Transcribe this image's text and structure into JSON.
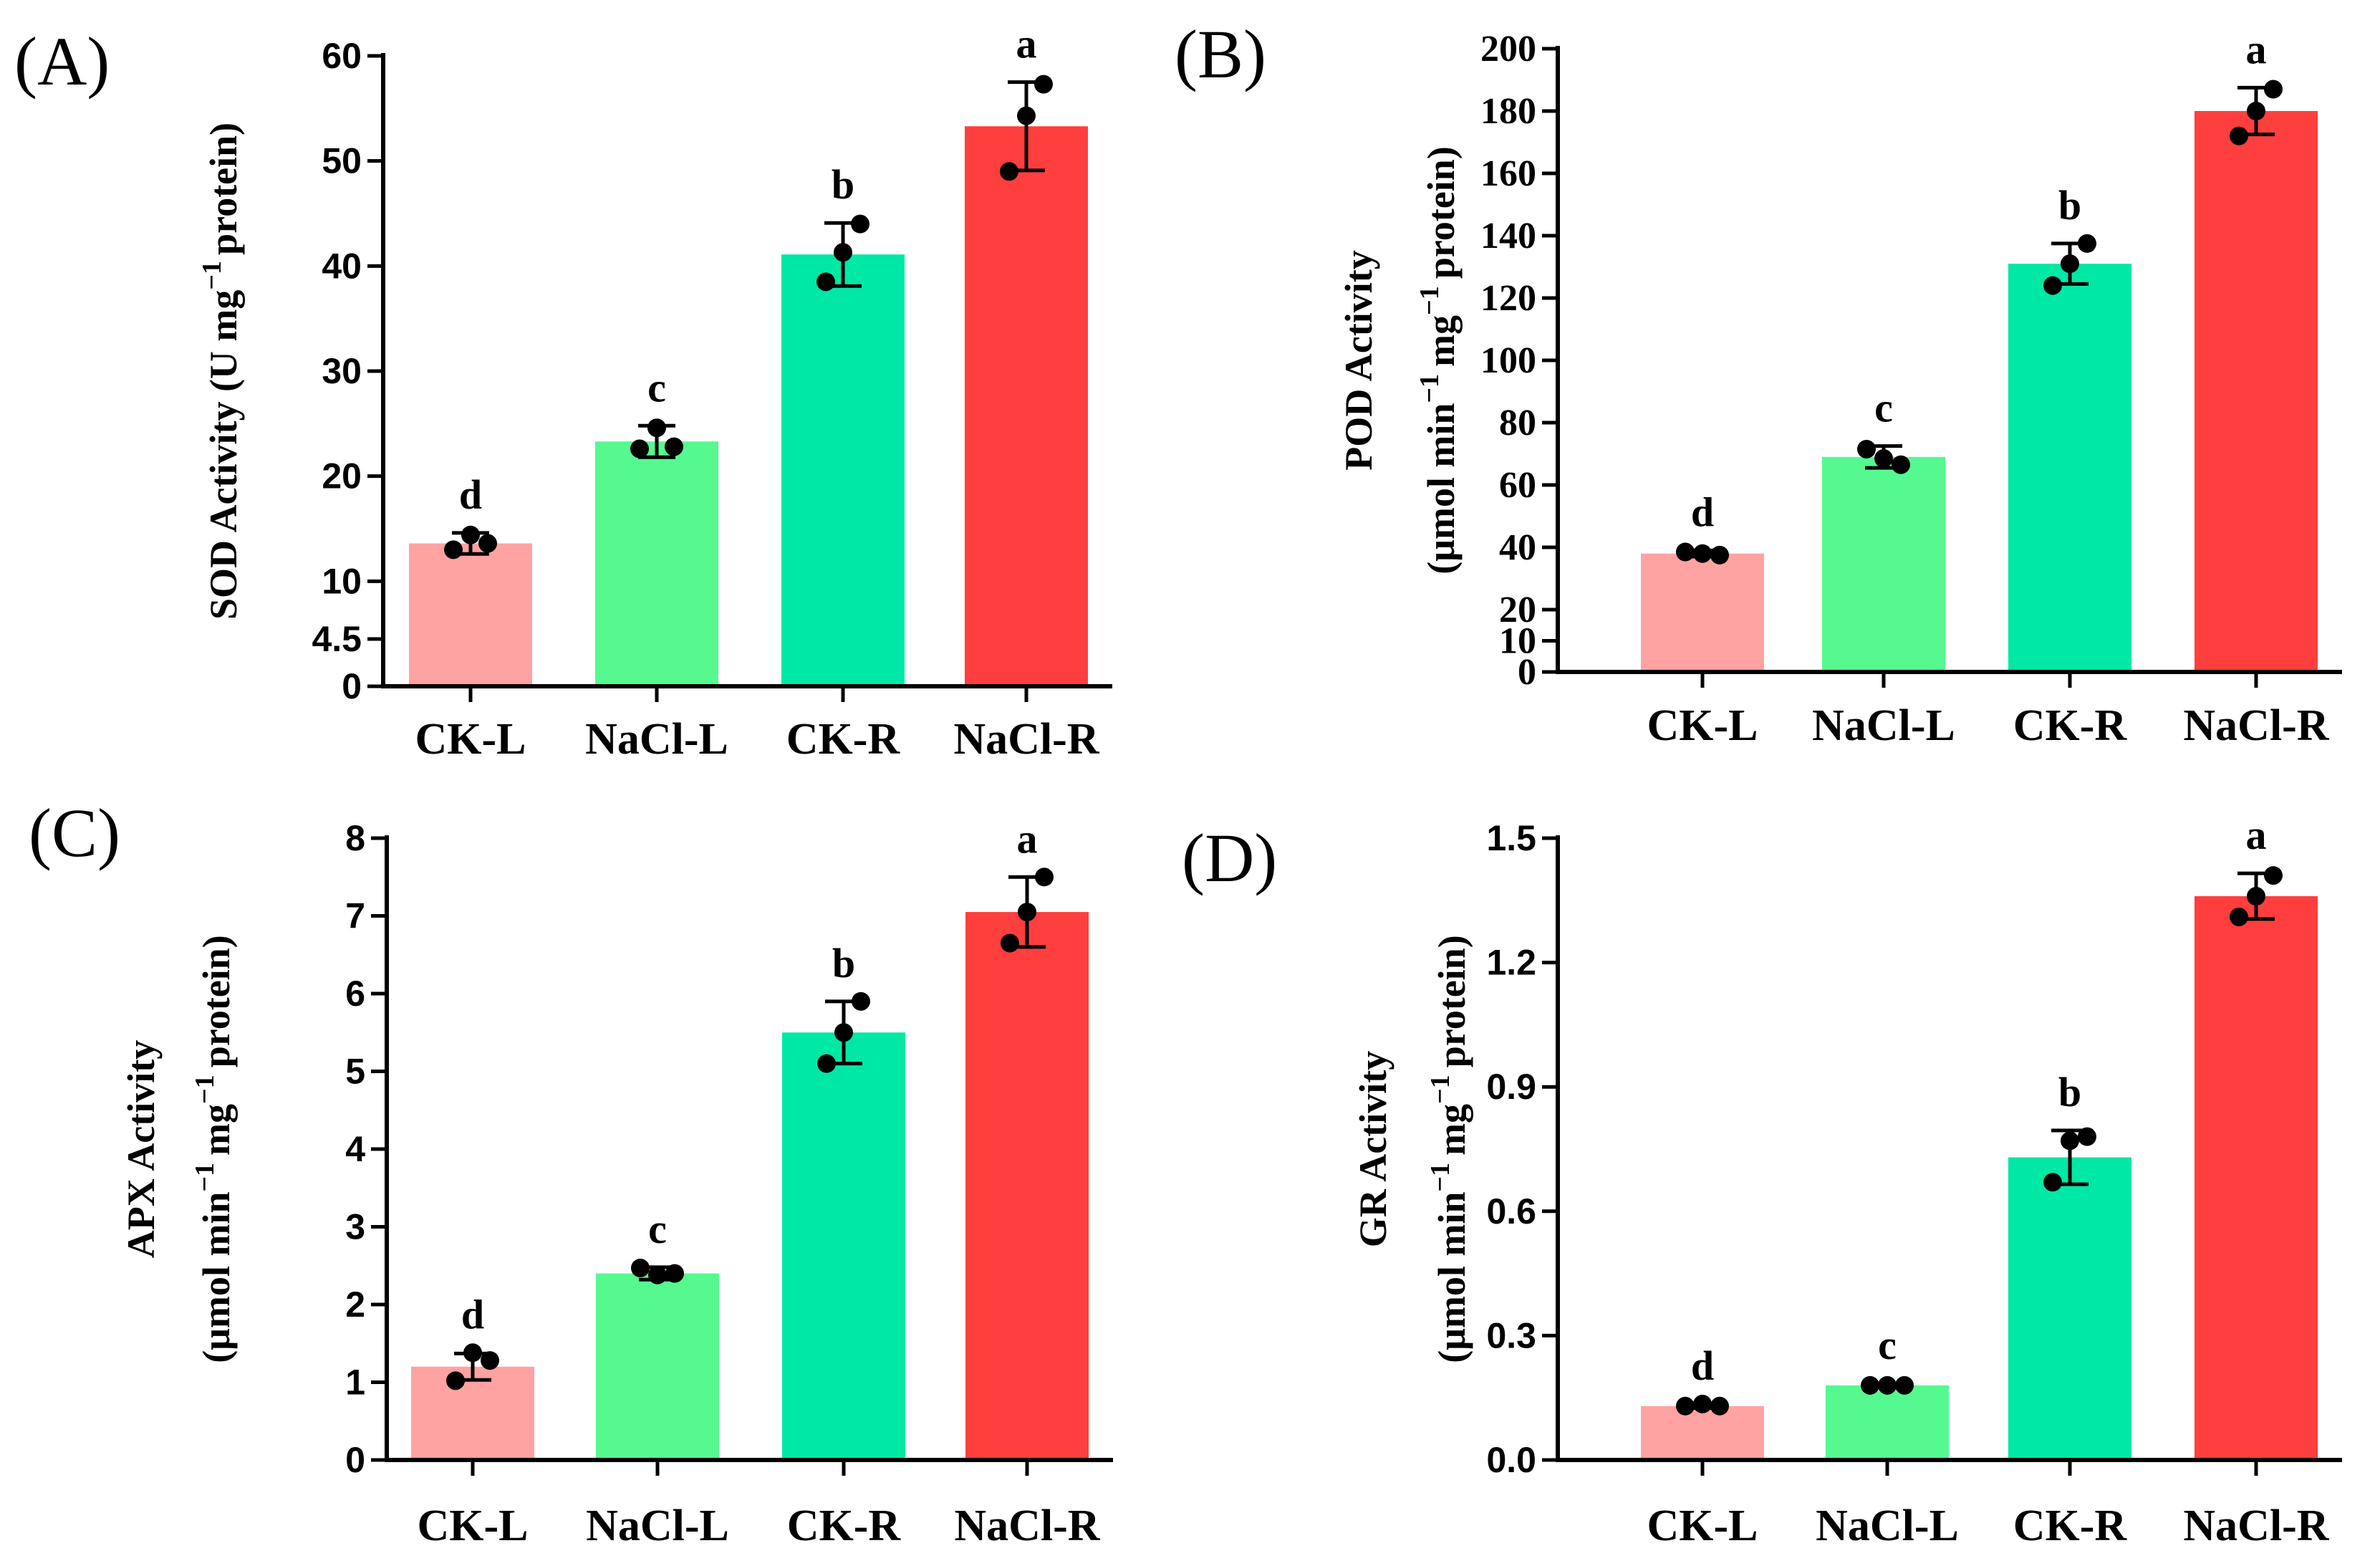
{
  "chart_data": [
    {
      "type": "bar",
      "panel_label": "(A)",
      "categories": [
        "CK-L",
        "NaCl-L",
        "CK-R",
        "NaCl-R"
      ],
      "colors": [
        "#ffa2a2",
        "#55f990",
        "#00e8a6",
        "#ff3e3e"
      ],
      "values": [
        13.6,
        23.3,
        41.1,
        53.3
      ],
      "errors": [
        1.0,
        1.5,
        3.0,
        4.2
      ],
      "points": [
        [
          13.0,
          14.4,
          13.6
        ],
        [
          22.6,
          24.6,
          22.8
        ],
        [
          38.5,
          41.3,
          44.0
        ],
        [
          49.0,
          54.3,
          57.3
        ]
      ],
      "sig_letters": [
        "d",
        "c",
        "b",
        "a"
      ],
      "ylabel": "SOD Activity (U mg",
      "ylabel_sup": "−1",
      "ylabel_end": "protein)",
      "yticks": [
        "0",
        "4.5",
        "10",
        "20",
        "30",
        "40",
        "50",
        "60"
      ],
      "ytick_values": [
        0,
        4.5,
        10,
        20,
        30,
        40,
        50,
        60
      ],
      "ylim": [
        0,
        60
      ],
      "tick_font": "sans"
    },
    {
      "type": "bar",
      "panel_label": "(B)",
      "categories": [
        "CK-L",
        "NaCl-L",
        "CK-R",
        "NaCl-R"
      ],
      "colors": [
        "#ffa2a2",
        "#55f990",
        "#00e8a6",
        "#ff3e3e"
      ],
      "values": [
        38.0,
        69.0,
        131.0,
        180.0
      ],
      "errors": [
        1.0,
        3.5,
        6.5,
        7.5
      ],
      "points": [
        [
          38.5,
          38.0,
          37.5
        ],
        [
          71.5,
          68.5,
          66.5
        ],
        [
          124.0,
          131.0,
          137.5
        ],
        [
          172.0,
          180.0,
          187.0
        ]
      ],
      "sig_letters": [
        "d",
        "c",
        "b",
        "a"
      ],
      "ylabel": "POD Activity",
      "ylabel2": "(μmol min",
      "ylabel2_sup1": "−1",
      "ylabel2_mid": "mg",
      "ylabel2_sup2": "−1",
      "ylabel2_end": "protein)",
      "yticks": [
        "0",
        "10",
        "20",
        "40",
        "60",
        "80",
        "100",
        "120",
        "140",
        "160",
        "180",
        "200"
      ],
      "ytick_values": [
        0,
        10,
        20,
        40,
        60,
        80,
        100,
        120,
        140,
        160,
        180,
        200
      ],
      "ylim": [
        0,
        200
      ],
      "tick_font": "serif"
    },
    {
      "type": "bar",
      "panel_label": "(C)",
      "categories": [
        "CK-L",
        "NaCl-L",
        "CK-R",
        "NaCl-R"
      ],
      "colors": [
        "#ffa2a2",
        "#55f990",
        "#00e8a6",
        "#ff3e3e"
      ],
      "values": [
        1.2,
        2.4,
        5.5,
        7.05
      ],
      "errors": [
        0.17,
        0.08,
        0.4,
        0.45
      ],
      "points": [
        [
          1.02,
          1.38,
          1.28
        ],
        [
          2.47,
          2.38,
          2.4
        ],
        [
          5.1,
          5.5,
          5.9
        ],
        [
          6.65,
          7.05,
          7.5
        ]
      ],
      "sig_letters": [
        "d",
        "c",
        "b",
        "a"
      ],
      "ylabel": "APX Activity",
      "ylabel2": "(μmol min",
      "ylabel2_sup1": "−1",
      "ylabel2_mid": "mg",
      "ylabel2_sup2": "−1",
      "ylabel2_end": "protein)",
      "yticks": [
        "0",
        "1",
        "2",
        "3",
        "4",
        "5",
        "6",
        "7",
        "8"
      ],
      "ytick_values": [
        0,
        1,
        2,
        3,
        4,
        5,
        6,
        7,
        8
      ],
      "ylim": [
        0,
        8
      ],
      "tick_font": "sans"
    },
    {
      "type": "bar",
      "panel_label": "(D)",
      "categories": [
        "CK-L",
        "NaCl-L",
        "CK-R",
        "NaCl-R"
      ],
      "colors": [
        "#ffa2a2",
        "#55f990",
        "#00e8a6",
        "#ff3e3e"
      ],
      "values": [
        0.13,
        0.18,
        0.73,
        1.36
      ],
      "errors": [
        0.005,
        0.005,
        0.065,
        0.055
      ],
      "points": [
        [
          0.13,
          0.135,
          0.13
        ],
        [
          0.18,
          0.18,
          0.18
        ],
        [
          0.67,
          0.77,
          0.78
        ],
        [
          1.31,
          1.36,
          1.41
        ]
      ],
      "sig_letters": [
        "d",
        "c",
        "b",
        "a"
      ],
      "ylabel": "GR Activity",
      "ylabel2": "(μmol min",
      "ylabel2_sup1": "−1",
      "ylabel2_mid": "mg",
      "ylabel2_sup2": "−1",
      "ylabel2_end": "protein)",
      "yticks": [
        "0.0",
        "0.3",
        "0.6",
        "0.9",
        "1.2",
        "1.5"
      ],
      "ytick_values": [
        0,
        0.3,
        0.6,
        0.9,
        1.2,
        1.5
      ],
      "ylim": [
        0,
        1.5
      ],
      "tick_font": "sans"
    }
  ]
}
